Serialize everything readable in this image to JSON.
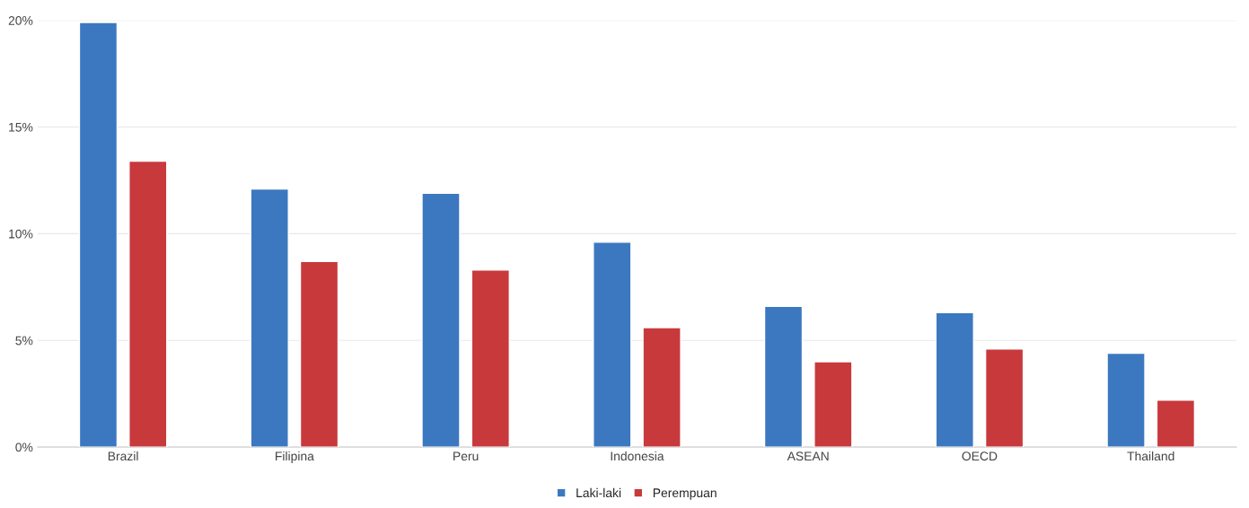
{
  "chart_data": {
    "type": "bar",
    "categories": [
      "Brazil",
      "Filipina",
      "Peru",
      "Indonesia",
      "ASEAN",
      "OECD",
      "Thailand"
    ],
    "series": [
      {
        "name": "Laki-laki",
        "color": "#3c78c0",
        "values": [
          19.9,
          12.1,
          11.9,
          9.6,
          6.6,
          6.3,
          4.4
        ]
      },
      {
        "name": "Perempuan",
        "color": "#c8393c",
        "values": [
          13.4,
          8.7,
          8.3,
          5.6,
          4.0,
          4.6,
          2.2
        ]
      }
    ],
    "ylim": [
      0,
      20
    ],
    "yticks": [
      {
        "value": 0,
        "label": "0%"
      },
      {
        "value": 5,
        "label": "5%"
      },
      {
        "value": 10,
        "label": "10%"
      },
      {
        "value": 15,
        "label": "15%"
      },
      {
        "value": 20,
        "label": "20%"
      }
    ],
    "grid": "y",
    "legend": "bottom"
  }
}
